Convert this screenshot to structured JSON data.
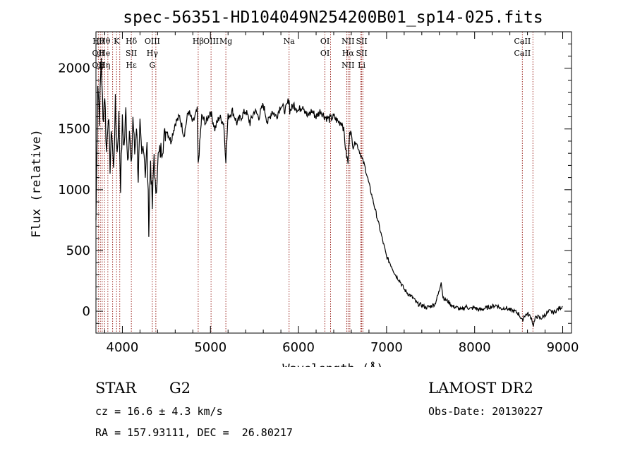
{
  "chart_data": {
    "type": "line",
    "title": "spec-56351-HD104049N254200B01_sp14-025.fits",
    "xlabel": "Wavelength (Å)",
    "ylabel": "Flux (relative)",
    "xlim": [
      3700,
      9100
    ],
    "ylim": [
      -180,
      2300
    ],
    "x_ticks": [
      4000,
      5000,
      6000,
      7000,
      8000,
      9000
    ],
    "y_ticks": [
      0,
      500,
      1000,
      1500,
      2000
    ],
    "grid": false,
    "line_color": "#000000",
    "marker_color": "#a0302a",
    "spectrum": {
      "x": [
        3700,
        3720,
        3740,
        3760,
        3780,
        3800,
        3820,
        3840,
        3860,
        3880,
        3900,
        3920,
        3940,
        3960,
        3980,
        4000,
        4020,
        4040,
        4060,
        4080,
        4100,
        4120,
        4140,
        4160,
        4180,
        4200,
        4220,
        4240,
        4260,
        4280,
        4300,
        4320,
        4340,
        4360,
        4380,
        4400,
        4450,
        4500,
        4550,
        4600,
        4650,
        4700,
        4750,
        4800,
        4850,
        4861,
        4900,
        4950,
        5000,
        5050,
        5100,
        5150,
        5175,
        5200,
        5250,
        5300,
        5350,
        5400,
        5450,
        5500,
        5550,
        5600,
        5650,
        5700,
        5750,
        5800,
        5850,
        5893,
        5900,
        5950,
        6000,
        6050,
        6100,
        6150,
        6200,
        6250,
        6300,
        6350,
        6400,
        6450,
        6500,
        6520,
        6540,
        6563,
        6580,
        6600,
        6620,
        6650,
        6700,
        6750,
        6800,
        6850,
        6900,
        6950,
        7000,
        7050,
        7100,
        7150,
        7200,
        7250,
        7300,
        7350,
        7400,
        7450,
        7500,
        7550,
        7600,
        7620,
        7640,
        7660,
        7700,
        7750,
        7800,
        7850,
        7900,
        7950,
        8000,
        8050,
        8100,
        8150,
        8200,
        8250,
        8300,
        8350,
        8400,
        8450,
        8500,
        8542,
        8560,
        8600,
        8650,
        8662,
        8700,
        8750,
        8800,
        8850,
        8900,
        8950,
        9000
      ],
      "y": [
        750,
        1900,
        1600,
        2100,
        1550,
        1800,
        1300,
        1650,
        1200,
        1500,
        1150,
        1700,
        1300,
        1600,
        1050,
        1550,
        1350,
        1650,
        1250,
        1500,
        1150,
        1600,
        1300,
        1550,
        1100,
        1500,
        1250,
        1400,
        1150,
        1350,
        700,
        1250,
        850,
        1300,
        900,
        1250,
        1350,
        1500,
        1400,
        1550,
        1600,
        1450,
        1650,
        1550,
        1650,
        1200,
        1600,
        1550,
        1650,
        1500,
        1600,
        1550,
        1250,
        1600,
        1650,
        1550,
        1600,
        1650,
        1550,
        1650,
        1600,
        1700,
        1550,
        1650,
        1600,
        1700,
        1650,
        1750,
        1650,
        1700,
        1650,
        1700,
        1600,
        1650,
        1600,
        1650,
        1600,
        1580,
        1600,
        1560,
        1550,
        1450,
        1300,
        1220,
        1500,
        1450,
        1350,
        1400,
        1300,
        1200,
        1050,
        900,
        750,
        600,
        450,
        380,
        300,
        250,
        180,
        140,
        110,
        60,
        50,
        30,
        40,
        60,
        170,
        250,
        120,
        100,
        80,
        40,
        30,
        10,
        40,
        20,
        30,
        10,
        20,
        30,
        40,
        50,
        20,
        30,
        10,
        0,
        -20,
        -80,
        -40,
        -20,
        -60,
        -120,
        -40,
        -60,
        -30,
        0,
        -10,
        20,
        40
      ]
    },
    "lines": [
      {
        "labels": [
          "Hθ",
          "OII",
          "OII"
        ],
        "wl": 3727
      },
      {
        "labels": [
          "Hθ",
          "He",
          "Hη"
        ],
        "wl": 3798
      },
      {
        "labels": [
          "K"
        ],
        "wl": 3934
      },
      {
        "labels": [
          "Hδ",
          "SII",
          "Hε"
        ],
        "wl": 4102
      },
      {
        "labels": [
          "OIII",
          "Hγ",
          "G"
        ],
        "wl": 4340
      },
      {
        "labels": [
          "Hβ"
        ],
        "wl": 4861
      },
      {
        "labels": [
          "OIII"
        ],
        "wl": 5007
      },
      {
        "labels": [
          "Mg"
        ],
        "wl": 5175
      },
      {
        "labels": [
          "Na"
        ],
        "wl": 5893
      },
      {
        "labels": [
          "OI",
          "OI"
        ],
        "wl": 6300
      },
      {
        "labels": [
          "NII",
          "Hα",
          "NII"
        ],
        "wl": 6563
      },
      {
        "labels": [
          "SII",
          "SII",
          "Li"
        ],
        "wl": 6717
      },
      {
        "labels": [
          "CaII",
          "CaII"
        ],
        "wl": 8542
      }
    ],
    "line_markers_wl": [
      3727,
      3750,
      3771,
      3798,
      3835,
      3889,
      3934,
      3970,
      4102,
      4340,
      4380,
      4861,
      5007,
      5175,
      5893,
      6300,
      6364,
      6548,
      6563,
      6583,
      6707,
      6717,
      6731,
      8542,
      8662
    ]
  },
  "footer": {
    "object_class": "STAR",
    "subclass": "G2",
    "survey": "LAMOST DR2",
    "redshift": "cz = 16.6 ± 4.3 km/s",
    "obs_date": "Obs-Date: 20130227",
    "coords": "RA = 157.93111, DEC =  26.80217"
  }
}
